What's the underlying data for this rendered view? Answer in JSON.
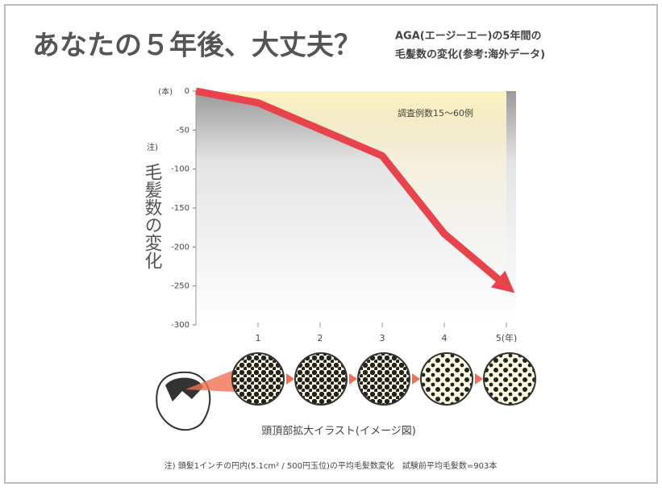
{
  "chart_data": {
    "type": "line",
    "title": "あなたの５年後、大丈夫？",
    "subtitle": [
      "AGA(エージーエー)の5年間の",
      "毛髪数の変化(参考:海外データ)"
    ],
    "y_label_note": "注)",
    "y_label": "毛髪数の変化",
    "y_unit": "(本)",
    "annotation": "調査例数15〜60例",
    "x": [
      0,
      1,
      2,
      3,
      4,
      5
    ],
    "series": [
      {
        "name": "毛髪数の変化",
        "color": "#e8434a",
        "values": [
          0,
          -15,
          -49,
          -83,
          -183,
          -250
        ]
      }
    ],
    "xlim": [
      0,
      5
    ],
    "xticks": [
      1,
      2,
      3,
      4,
      {
        "value": 5,
        "label": "5(年)"
      }
    ],
    "ylim": [
      -300,
      0
    ],
    "yticks": [
      0,
      -50,
      -100,
      -150,
      -200,
      -250,
      -300
    ],
    "illustration_caption": "頭頂部拡大イラスト(イメージ図)",
    "footnote": "注) 頭髪1インチの円内(5.1cm² / 500円玉位)の平均毛髪数変化　試験前平均毛髪数=903本"
  }
}
